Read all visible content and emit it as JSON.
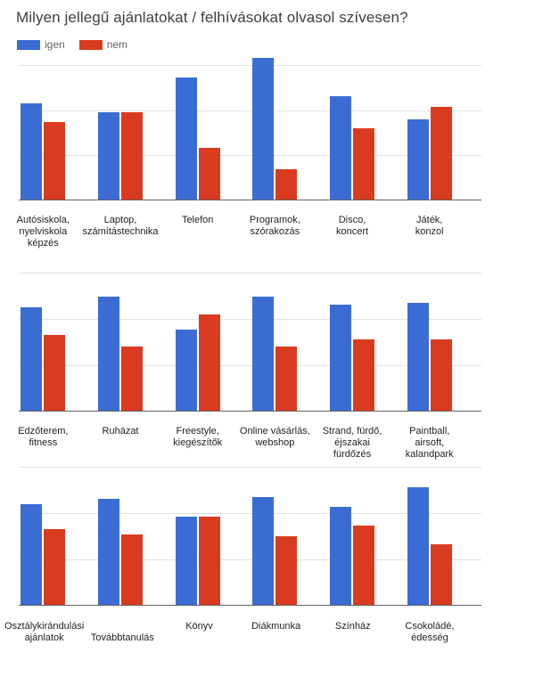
{
  "title": "Milyen jellegű ajánlatokat / felhívásokat olvasol szívesen?",
  "legend": {
    "igen_label": "igen",
    "nem_label": "nem"
  },
  "colors": {
    "igen": "#3B6CD3",
    "nem": "#D93B21",
    "gridline": "#E3E3E3",
    "baseline": "#616161"
  },
  "chart_data": [
    {
      "type": "bar",
      "row": 1,
      "categories": [
        [
          "Autósiskola,",
          "nyelviskola",
          "képzés"
        ],
        [
          "Laptop,",
          "számítástechnika"
        ],
        [
          "Telefon"
        ],
        [
          "Programok,",
          "szórakozás"
        ],
        [
          "Disco,",
          "koncert"
        ],
        [
          "Játék,",
          "konzol"
        ]
      ],
      "series": [
        {
          "name": "igen",
          "values": [
            72,
            65,
            91,
            105,
            77,
            60
          ]
        },
        {
          "name": "nem",
          "values": [
            58,
            65,
            39,
            23,
            53,
            69
          ]
        }
      ],
      "unit": "percent of top-gridline height (y-axis has no numeric labels)",
      "gridlines_pct": [
        0,
        33.33,
        66.67,
        100
      ],
      "ylim": [
        0,
        105
      ],
      "legend_position": "top-left",
      "staggered": []
    },
    {
      "type": "bar",
      "row": 2,
      "categories": [
        [
          "Edzőterem,",
          "fitness"
        ],
        [
          "Ruházat"
        ],
        [
          "Freestyle,",
          "kiegészítők"
        ],
        [
          "Online vásárlás,",
          "webshop"
        ],
        [
          "Strand, fürdő,",
          "éjszakai",
          "fürdőzés"
        ],
        [
          "Paintball,",
          "airsoft,",
          "kalandpark"
        ]
      ],
      "series": [
        {
          "name": "igen",
          "values": [
            75,
            83,
            59,
            83,
            77,
            78
          ]
        },
        {
          "name": "nem",
          "values": [
            55,
            47,
            70,
            47,
            52,
            52
          ]
        }
      ],
      "unit": "percent of top-gridline height (y-axis has no numeric labels)",
      "gridlines_pct": [
        0,
        33.33,
        66.67,
        100
      ],
      "ylim": [
        0,
        105
      ],
      "staggered": []
    },
    {
      "type": "bar",
      "row": 3,
      "categories": [
        [
          "Osztálykirándulási",
          "ajánlatok"
        ],
        [
          "Továbbtanulás"
        ],
        [
          "Könyv"
        ],
        [
          "Diákmunka"
        ],
        [
          "Színház"
        ],
        [
          "Csokoládé,",
          "édesség"
        ]
      ],
      "series": [
        {
          "name": "igen",
          "values": [
            73,
            77,
            64,
            78,
            71,
            85
          ]
        },
        {
          "name": "nem",
          "values": [
            55,
            51,
            64,
            50,
            58,
            44
          ]
        }
      ],
      "unit": "percent of top-gridline height (y-axis has no numeric labels)",
      "gridlines_pct": [
        0,
        33.33,
        66.67,
        100
      ],
      "ylim": [
        0,
        105
      ],
      "staggered": [
        1
      ]
    }
  ]
}
